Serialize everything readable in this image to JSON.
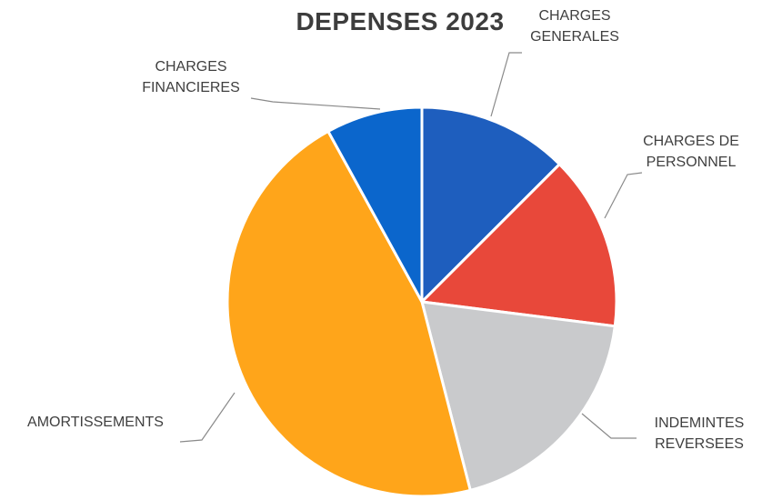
{
  "chart_data": {
    "type": "pie",
    "title": "DEPENSES 2023",
    "slices": [
      {
        "label": "CHARGES GENERALES",
        "value": 12.5,
        "color": "#1E5EBE"
      },
      {
        "label": "CHARGES DE PERSONNEL",
        "value": 14.5,
        "color": "#E8483A"
      },
      {
        "label": "INDEMINTES REVERSEES",
        "value": 19,
        "color": "#C9CACC"
      },
      {
        "label": "AMORTISSEMENTS",
        "value": 46,
        "color": "#FFA51A"
      },
      {
        "label": "CHARGES FINANCIERES",
        "value": 8,
        "color": "#0B66CC"
      }
    ],
    "legend": "none",
    "data_labels": "category names with leader lines"
  }
}
